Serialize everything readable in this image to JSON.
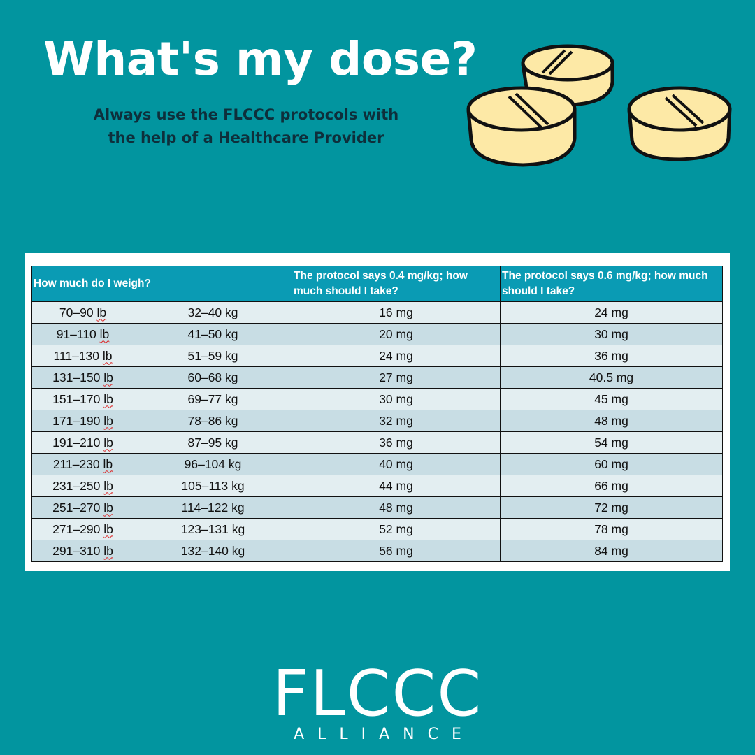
{
  "header": {
    "title": "What's my dose?",
    "subtitle_line1": "Always use the FLCCC protocols with",
    "subtitle_line2": "the help of a Healthcare Provider"
  },
  "table": {
    "headers": {
      "weight": "How much do I weigh?",
      "dose_04": "The protocol says 0.4 mg/kg; how much should I take?",
      "dose_06": "The protocol says 0.6 mg/kg; how much should I take?"
    },
    "rows": [
      {
        "lb_range": "70–90",
        "lb_unit": "lb",
        "kg": "32–40 kg",
        "dose_04": "16 mg",
        "dose_06": "24 mg"
      },
      {
        "lb_range": "91–110",
        "lb_unit": "lb",
        "kg": "41–50 kg",
        "dose_04": "20 mg",
        "dose_06": "30 mg"
      },
      {
        "lb_range": "111–130",
        "lb_unit": "lb",
        "kg": "51–59 kg",
        "dose_04": "24 mg",
        "dose_06": "36 mg"
      },
      {
        "lb_range": "131–150",
        "lb_unit": "lb",
        "kg": "60–68 kg",
        "dose_04": "27 mg",
        "dose_06": "40.5 mg"
      },
      {
        "lb_range": "151–170",
        "lb_unit": "lb",
        "kg": "69–77 kg",
        "dose_04": "30 mg",
        "dose_06": "45 mg"
      },
      {
        "lb_range": "171–190",
        "lb_unit": "lb",
        "kg": "78–86 kg",
        "dose_04": "32 mg",
        "dose_06": "48 mg"
      },
      {
        "lb_range": "191–210",
        "lb_unit": "lb",
        "kg": "87–95 kg",
        "dose_04": "36 mg",
        "dose_06": "54 mg"
      },
      {
        "lb_range": "211–230",
        "lb_unit": "lb",
        "kg": "96–104 kg",
        "dose_04": "40 mg",
        "dose_06": "60 mg"
      },
      {
        "lb_range": "231–250",
        "lb_unit": "lb",
        "kg": "105–113 kg",
        "dose_04": "44 mg",
        "dose_06": "66 mg"
      },
      {
        "lb_range": "251–270",
        "lb_unit": "lb",
        "kg": "114–122 kg",
        "dose_04": "48 mg",
        "dose_06": "72 mg"
      },
      {
        "lb_range": "271–290",
        "lb_unit": "lb",
        "kg": "123–131 kg",
        "dose_04": "52 mg",
        "dose_06": "78 mg"
      },
      {
        "lb_range": "291–310",
        "lb_unit": "lb",
        "kg": "132–140 kg",
        "dose_04": "56 mg",
        "dose_06": "84 mg"
      }
    ]
  },
  "logo": {
    "main": "FLCCC",
    "sub": "ALLIANCE"
  },
  "colors": {
    "background": "#02959f",
    "header_fill": "#0a9bb4",
    "row_light": "#e3eef1",
    "row_dark": "#c8dde4",
    "pill_fill": "#fde9a6"
  },
  "icons": [
    "pill-icon"
  ]
}
